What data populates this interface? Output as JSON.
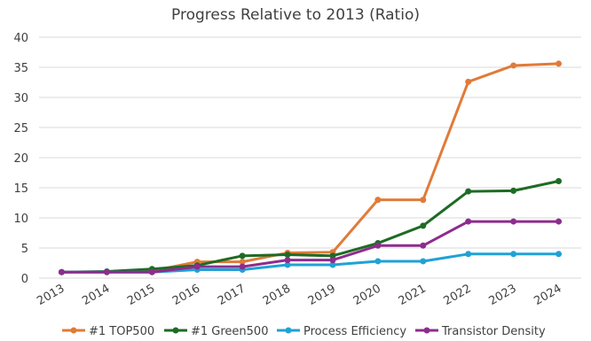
{
  "chart_data": {
    "type": "line",
    "title": "Progress Relative to 2013 (Ratio)",
    "xlabel": "",
    "ylabel": "",
    "categories": [
      "2013",
      "2014",
      "2015",
      "2016",
      "2017",
      "2018",
      "2019",
      "2020",
      "2021",
      "2022",
      "2023",
      "2024"
    ],
    "ylim": [
      0,
      40
    ],
    "yticks": [
      0,
      5,
      10,
      15,
      20,
      25,
      30,
      35,
      40
    ],
    "grid": true,
    "legend_position": "bottom",
    "series": [
      {
        "name": "#1 TOP500",
        "color": "#E07B39",
        "values": [
          1.0,
          1.0,
          1.2,
          2.7,
          2.7,
          4.2,
          4.3,
          13.0,
          13.0,
          32.6,
          35.3,
          35.6
        ]
      },
      {
        "name": "#1 Green500",
        "color": "#1E6B24",
        "values": [
          1.0,
          1.1,
          1.5,
          2.1,
          3.7,
          3.9,
          3.7,
          5.8,
          8.7,
          14.4,
          14.5,
          16.1
        ]
      },
      {
        "name": "Process Efficiency",
        "color": "#1FA2D6",
        "values": [
          1.0,
          1.0,
          1.0,
          1.4,
          1.4,
          2.2,
          2.2,
          2.8,
          2.8,
          4.0,
          4.0,
          4.0
        ]
      },
      {
        "name": "Transistor Density",
        "color": "#8E2C8E",
        "values": [
          1.0,
          1.0,
          1.0,
          1.9,
          1.9,
          3.0,
          3.0,
          5.4,
          5.4,
          9.4,
          9.4,
          9.4
        ]
      }
    ]
  }
}
